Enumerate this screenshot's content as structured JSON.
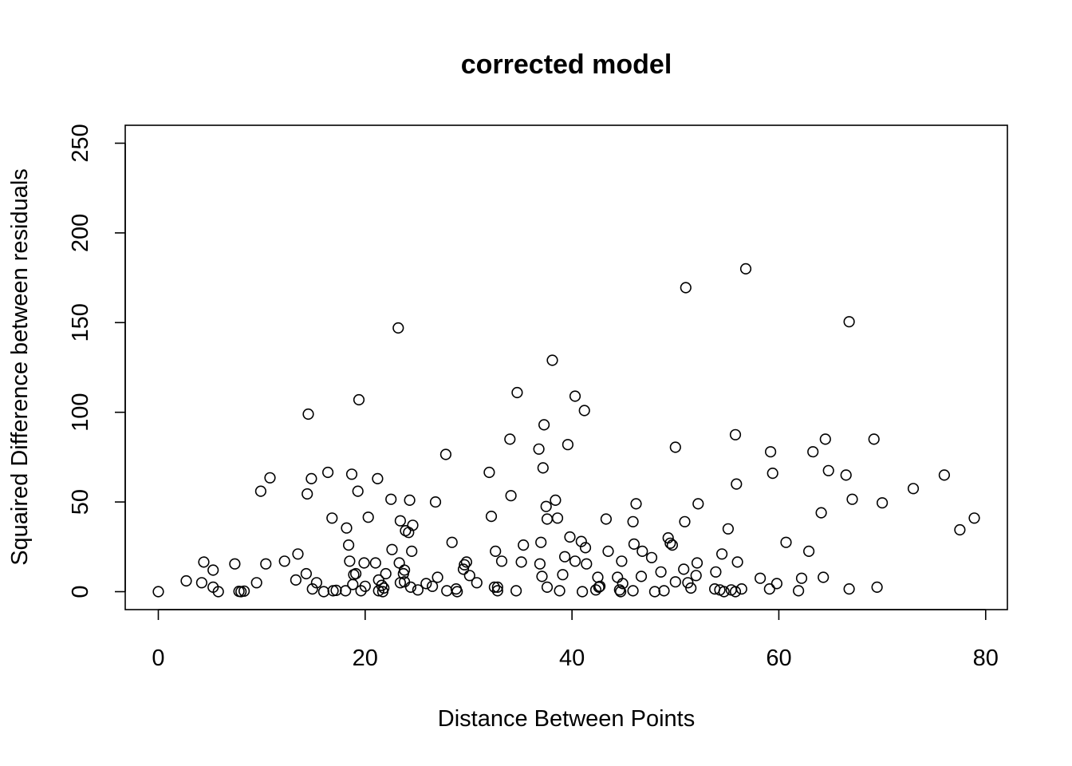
{
  "chart_data": {
    "type": "scatter",
    "title": "corrected model",
    "xlabel": "Distance Between Points",
    "ylabel": "Squaired Difference between residuals",
    "xlim": [
      -3.2,
      82.1
    ],
    "ylim": [
      -10,
      260
    ],
    "x_ticks": [
      0,
      20,
      40,
      60,
      80
    ],
    "y_ticks": [
      0,
      50,
      100,
      150,
      200,
      250
    ],
    "x_tick_labels": [
      "0",
      "20",
      "40",
      "60",
      "80"
    ],
    "y_tick_labels": [
      "0",
      "50",
      "100",
      "150",
      "200",
      "250"
    ],
    "grid": false,
    "marker": "open-circle",
    "points": [
      [
        0.0,
        0.0
      ],
      [
        2.7,
        6.0
      ],
      [
        4.2,
        5.0
      ],
      [
        4.4,
        16.5
      ],
      [
        5.3,
        12.0
      ],
      [
        5.3,
        2.5
      ],
      [
        5.8,
        0.0
      ],
      [
        7.4,
        15.5
      ],
      [
        7.8,
        0.2
      ],
      [
        8.0,
        0.0
      ],
      [
        8.3,
        0.3
      ],
      [
        9.5,
        5.0
      ],
      [
        9.9,
        56.0
      ],
      [
        10.4,
        15.5
      ],
      [
        10.8,
        63.5
      ],
      [
        12.2,
        17.0
      ],
      [
        13.3,
        6.5
      ],
      [
        13.5,
        21.0
      ],
      [
        14.3,
        10.0
      ],
      [
        14.4,
        54.5
      ],
      [
        14.5,
        99.0
      ],
      [
        14.8,
        63.0
      ],
      [
        14.9,
        1.5
      ],
      [
        15.3,
        5.0
      ],
      [
        16.0,
        0.0
      ],
      [
        16.4,
        66.5
      ],
      [
        16.8,
        41.0
      ],
      [
        16.9,
        0.5
      ],
      [
        17.2,
        0.7
      ],
      [
        18.1,
        0.5
      ],
      [
        18.2,
        35.5
      ],
      [
        18.4,
        26.0
      ],
      [
        18.5,
        17.0
      ],
      [
        18.7,
        65.5
      ],
      [
        18.8,
        4.0
      ],
      [
        18.9,
        9.5
      ],
      [
        19.1,
        10.0
      ],
      [
        19.3,
        56.0
      ],
      [
        19.4,
        107.0
      ],
      [
        19.6,
        0.5
      ],
      [
        19.9,
        16.0
      ],
      [
        20.0,
        3.0
      ],
      [
        20.3,
        41.5
      ],
      [
        21.0,
        16.0
      ],
      [
        21.2,
        63.0
      ],
      [
        21.3,
        6.5
      ],
      [
        21.3,
        0.5
      ],
      [
        21.6,
        3.5
      ],
      [
        21.7,
        0.0
      ],
      [
        21.8,
        2.0
      ],
      [
        22.0,
        10.0
      ],
      [
        22.5,
        51.5
      ],
      [
        22.6,
        23.5
      ],
      [
        23.2,
        147.0
      ],
      [
        23.3,
        16.0
      ],
      [
        23.4,
        5.0
      ],
      [
        23.4,
        39.5
      ],
      [
        23.7,
        10.0
      ],
      [
        23.8,
        12.0
      ],
      [
        23.8,
        5.5
      ],
      [
        23.9,
        34.0
      ],
      [
        24.2,
        33.0
      ],
      [
        24.3,
        51.0
      ],
      [
        24.4,
        2.5
      ],
      [
        24.5,
        22.5
      ],
      [
        24.6,
        37.0
      ],
      [
        25.1,
        1.0
      ],
      [
        25.9,
        4.5
      ],
      [
        26.5,
        3.0
      ],
      [
        26.8,
        50.0
      ],
      [
        27.0,
        8.0
      ],
      [
        27.8,
        76.5
      ],
      [
        27.9,
        0.5
      ],
      [
        28.4,
        27.5
      ],
      [
        28.8,
        1.5
      ],
      [
        28.9,
        0.0
      ],
      [
        29.5,
        12.5
      ],
      [
        29.6,
        15.0
      ],
      [
        29.8,
        16.5
      ],
      [
        30.1,
        9.0
      ],
      [
        30.8,
        5.0
      ],
      [
        32.0,
        66.5
      ],
      [
        32.2,
        42.0
      ],
      [
        32.5,
        2.5
      ],
      [
        32.6,
        22.5
      ],
      [
        32.8,
        0.5
      ],
      [
        32.8,
        2.5
      ],
      [
        33.2,
        17.0
      ],
      [
        34.0,
        85.0
      ],
      [
        34.1,
        53.5
      ],
      [
        34.6,
        0.5
      ],
      [
        34.7,
        111.0
      ],
      [
        35.1,
        16.5
      ],
      [
        35.3,
        26.0
      ],
      [
        36.8,
        79.5
      ],
      [
        36.9,
        15.5
      ],
      [
        37.0,
        27.5
      ],
      [
        37.1,
        8.5
      ],
      [
        37.2,
        69.0
      ],
      [
        37.3,
        93.0
      ],
      [
        37.5,
        47.5
      ],
      [
        37.6,
        40.5
      ],
      [
        37.6,
        2.5
      ],
      [
        38.1,
        129.0
      ],
      [
        38.4,
        51.0
      ],
      [
        38.6,
        41.0
      ],
      [
        38.8,
        0.5
      ],
      [
        39.1,
        9.5
      ],
      [
        39.3,
        19.5
      ],
      [
        39.6,
        82.0
      ],
      [
        39.8,
        30.5
      ],
      [
        40.3,
        109.0
      ],
      [
        40.3,
        17.0
      ],
      [
        40.9,
        28.0
      ],
      [
        41.0,
        0.0
      ],
      [
        41.2,
        101.0
      ],
      [
        41.3,
        24.5
      ],
      [
        41.4,
        15.5
      ],
      [
        42.3,
        1.0
      ],
      [
        42.5,
        8.0
      ],
      [
        42.6,
        2.5
      ],
      [
        42.7,
        3.0
      ],
      [
        43.3,
        40.5
      ],
      [
        43.5,
        22.5
      ],
      [
        44.4,
        8.0
      ],
      [
        44.6,
        1.0
      ],
      [
        44.7,
        0.0
      ],
      [
        44.8,
        17.0
      ],
      [
        44.9,
        4.5
      ],
      [
        45.9,
        39.0
      ],
      [
        45.9,
        0.5
      ],
      [
        46.0,
        26.5
      ],
      [
        46.2,
        49.0
      ],
      [
        46.7,
        8.5
      ],
      [
        46.8,
        22.5
      ],
      [
        47.7,
        19.0
      ],
      [
        48.0,
        0.0
      ],
      [
        48.6,
        11.0
      ],
      [
        48.9,
        0.5
      ],
      [
        49.3,
        30.0
      ],
      [
        49.5,
        27.0
      ],
      [
        49.7,
        26.0
      ],
      [
        50.0,
        5.5
      ],
      [
        50.0,
        80.5
      ],
      [
        50.8,
        12.5
      ],
      [
        50.9,
        39.0
      ],
      [
        51.0,
        169.5
      ],
      [
        51.2,
        5.0
      ],
      [
        51.5,
        2.0
      ],
      [
        52.0,
        9.0
      ],
      [
        52.1,
        16.0
      ],
      [
        52.2,
        49.0
      ],
      [
        53.8,
        1.5
      ],
      [
        53.9,
        11.0
      ],
      [
        54.3,
        1.0
      ],
      [
        54.5,
        21.0
      ],
      [
        54.7,
        0.0
      ],
      [
        55.1,
        35.0
      ],
      [
        55.4,
        1.0
      ],
      [
        55.8,
        87.5
      ],
      [
        55.8,
        0.0
      ],
      [
        55.9,
        60.0
      ],
      [
        56.0,
        16.5
      ],
      [
        56.4,
        1.5
      ],
      [
        56.8,
        180.0
      ],
      [
        58.2,
        7.5
      ],
      [
        59.1,
        1.5
      ],
      [
        59.2,
        78.0
      ],
      [
        59.4,
        66.0
      ],
      [
        59.8,
        4.5
      ],
      [
        60.7,
        27.5
      ],
      [
        61.9,
        0.5
      ],
      [
        62.2,
        7.5
      ],
      [
        62.9,
        22.5
      ],
      [
        63.3,
        78.0
      ],
      [
        64.1,
        44.0
      ],
      [
        64.3,
        8.0
      ],
      [
        64.5,
        85.0
      ],
      [
        64.8,
        67.5
      ],
      [
        66.5,
        65.0
      ],
      [
        66.8,
        150.5
      ],
      [
        66.8,
        1.5
      ],
      [
        67.1,
        51.5
      ],
      [
        69.2,
        85.0
      ],
      [
        69.5,
        2.5
      ],
      [
        70.0,
        49.5
      ],
      [
        73.0,
        57.5
      ],
      [
        76.0,
        65.0
      ],
      [
        77.5,
        34.5
      ],
      [
        78.9,
        41.0
      ]
    ]
  }
}
